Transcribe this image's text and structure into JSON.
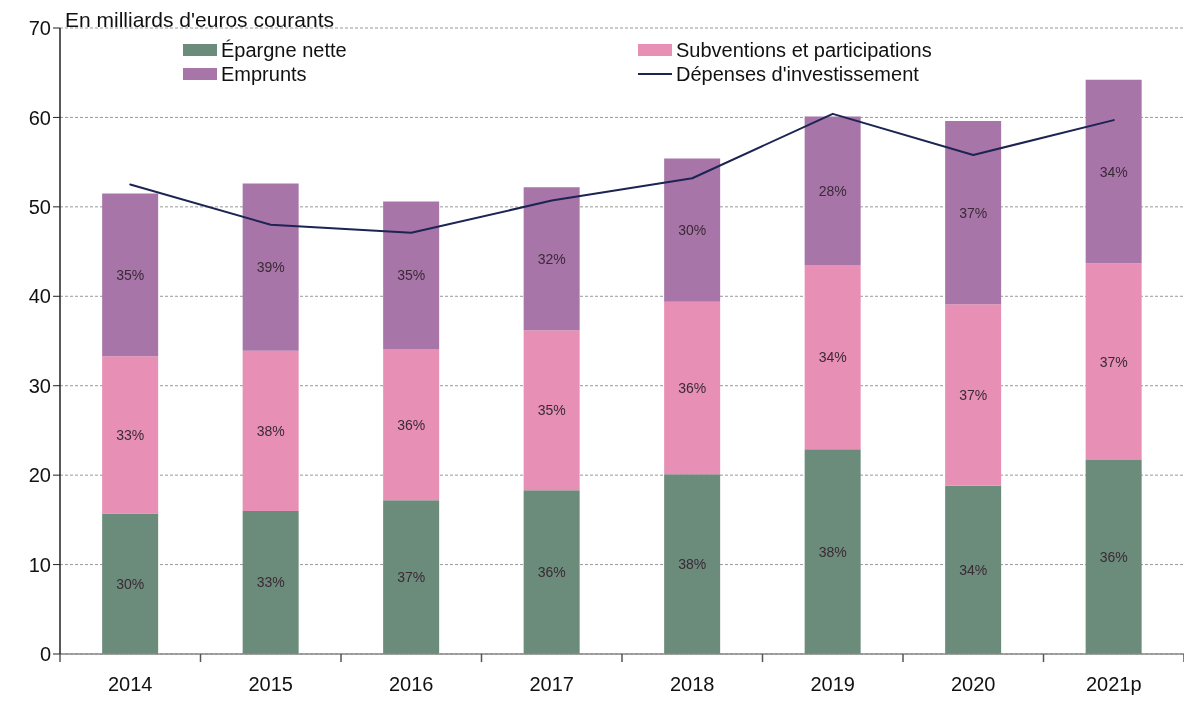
{
  "chart_data": {
    "type": "bar",
    "ylabel": "En milliards d'euros courants",
    "categories": [
      "2014",
      "2015",
      "2016",
      "2017",
      "2018",
      "2019",
      "2020",
      "2021p"
    ],
    "series": [
      {
        "name": "Épargne nette",
        "color": "#6b8b7b",
        "values": [
          15.7,
          16.0,
          17.2,
          18.3,
          20.1,
          22.9,
          18.8,
          21.7
        ]
      },
      {
        "name": "Subventions et participations",
        "color": "#e78fb4",
        "values": [
          17.6,
          17.9,
          16.9,
          17.9,
          19.3,
          20.6,
          20.3,
          22.0
        ]
      },
      {
        "name": "Emprunts",
        "color": "#a875a9",
        "values": [
          18.2,
          18.7,
          16.5,
          16.0,
          16.0,
          16.6,
          20.5,
          20.5
        ]
      },
      {
        "name": "Dépenses d'investissement",
        "type": "line",
        "color": "#1c2453",
        "marker": "none",
        "values": [
          52.5,
          48.0,
          47.1,
          50.7,
          53.2,
          60.4,
          55.8,
          59.7
        ]
      }
    ],
    "annotations": [
      "30%",
      "33%",
      "37%",
      "36%",
      "38%",
      "38%",
      "34%",
      "36%",
      "33%",
      "38%",
      "36%",
      "35%",
      "36%",
      "34%",
      "37%",
      "37%",
      "35%",
      "39%",
      "35%",
      "32%",
      "30%",
      "28%",
      "37%",
      "34%"
    ],
    "stacked": true,
    "ylim": [
      0,
      70
    ],
    "yticks": [
      0,
      10,
      20,
      30,
      40,
      50,
      60,
      70
    ],
    "grid": "y",
    "legend": "top"
  }
}
